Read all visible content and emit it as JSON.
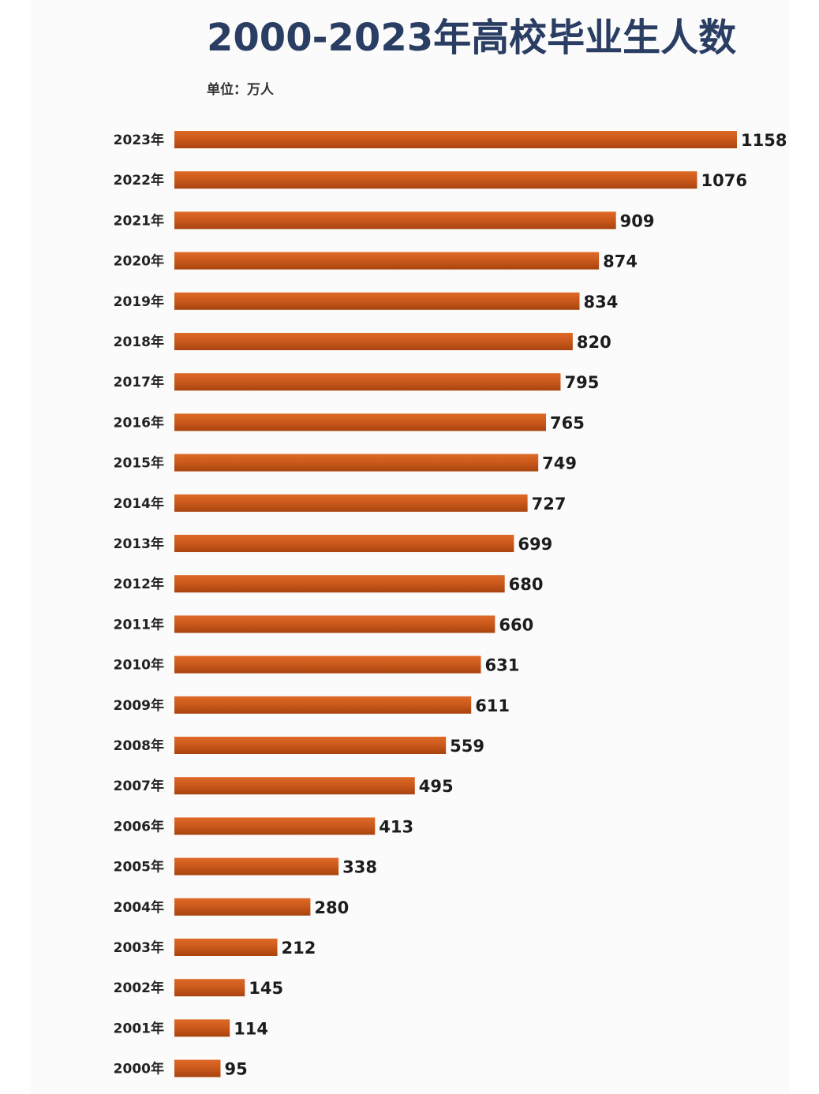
{
  "colors": {
    "bar": "#c9581b",
    "bar_top": "#df6a28",
    "bar_bottom": "#a8440f",
    "title": "#2a3d63",
    "text": "#222222"
  },
  "chart_data": {
    "type": "bar",
    "orientation": "horizontal",
    "title": "2000-2023年高校毕业生人数",
    "unit_label": "单位：万人",
    "xlabel": "",
    "ylabel": "",
    "legend": "none",
    "grid": false,
    "xlim": [
      0,
      1158
    ],
    "categories": [
      "2023年",
      "2022年",
      "2021年",
      "2020年",
      "2019年",
      "2018年",
      "2017年",
      "2016年",
      "2015年",
      "2014年",
      "2013年",
      "2012年",
      "2011年",
      "2010年",
      "2009年",
      "2008年",
      "2007年",
      "2006年",
      "2005年",
      "2004年",
      "2003年",
      "2002年",
      "2001年",
      "2000年"
    ],
    "values": [
      1158,
      1076,
      909,
      874,
      834,
      820,
      795,
      765,
      749,
      727,
      699,
      680,
      660,
      631,
      611,
      559,
      495,
      413,
      338,
      280,
      212,
      145,
      114,
      95
    ]
  }
}
